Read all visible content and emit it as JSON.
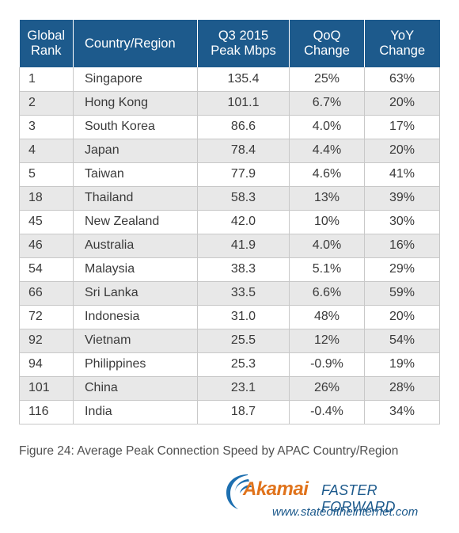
{
  "table": {
    "headers": {
      "rank": [
        "Global",
        "Rank"
      ],
      "country": "Country/Region",
      "peak": [
        "Q3 2015",
        "Peak Mbps"
      ],
      "qoq": [
        "QoQ",
        "Change"
      ],
      "yoy": [
        "YoY",
        "Change"
      ]
    },
    "rows": [
      {
        "rank": "1",
        "country": "Singapore",
        "peak": "135.4",
        "qoq": "25%",
        "yoy": "63%"
      },
      {
        "rank": "2",
        "country": "Hong Kong",
        "peak": "101.1",
        "qoq": "6.7%",
        "yoy": "20%"
      },
      {
        "rank": "3",
        "country": "South Korea",
        "peak": "86.6",
        "qoq": "4.0%",
        "yoy": "17%"
      },
      {
        "rank": "4",
        "country": "Japan",
        "peak": "78.4",
        "qoq": "4.4%",
        "yoy": "20%"
      },
      {
        "rank": "5",
        "country": "Taiwan",
        "peak": "77.9",
        "qoq": "4.6%",
        "yoy": "41%"
      },
      {
        "rank": "18",
        "country": "Thailand",
        "peak": "58.3",
        "qoq": "13%",
        "yoy": "39%"
      },
      {
        "rank": "45",
        "country": "New Zealand",
        "peak": "42.0",
        "qoq": "10%",
        "yoy": "30%"
      },
      {
        "rank": "46",
        "country": "Australia",
        "peak": "41.9",
        "qoq": "4.0%",
        "yoy": "16%"
      },
      {
        "rank": "54",
        "country": "Malaysia",
        "peak": "38.3",
        "qoq": "5.1%",
        "yoy": "29%"
      },
      {
        "rank": "66",
        "country": "Sri Lanka",
        "peak": "33.5",
        "qoq": "6.6%",
        "yoy": "59%"
      },
      {
        "rank": "72",
        "country": "Indonesia",
        "peak": "31.0",
        "qoq": "48%",
        "yoy": "20%"
      },
      {
        "rank": "92",
        "country": "Vietnam",
        "peak": "25.5",
        "qoq": "12%",
        "yoy": "54%"
      },
      {
        "rank": "94",
        "country": "Philippines",
        "peak": "25.3",
        "qoq": "-0.9%",
        "yoy": "19%"
      },
      {
        "rank": "101",
        "country": "China",
        "peak": "23.1",
        "qoq": "26%",
        "yoy": "28%"
      },
      {
        "rank": "116",
        "country": "India",
        "peak": "18.7",
        "qoq": "-0.4%",
        "yoy": "34%"
      }
    ]
  },
  "caption": "Figure 24: Average Peak Connection Speed by APAC Country/Region",
  "branding": {
    "logo_icon": "akamai-swoosh-icon",
    "brand_name": "Akamai",
    "tagline": "FASTER FORWARD",
    "url": "www.stateoftheinternet.com",
    "colors": {
      "header_bg": "#1d5a8c",
      "brand_orange": "#e0731c",
      "brand_blue": "#1d5a8c",
      "stripe": "#e8e8e8"
    }
  }
}
